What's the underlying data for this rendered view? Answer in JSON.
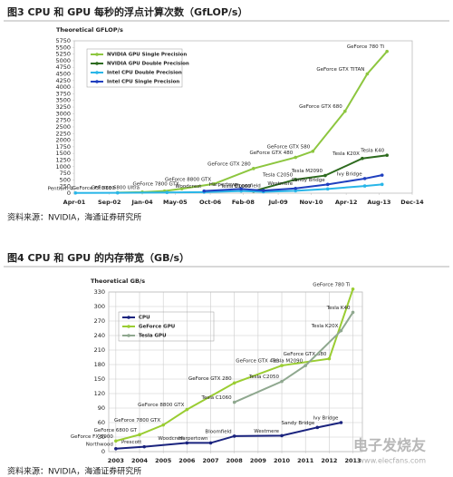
{
  "chart_data": [
    {
      "type": "line",
      "title": "图3  CPU 和 GPU 每秒的浮点计算次数（GfLOP/s）",
      "y_label": "Theoretical GFLOP/s",
      "source": "资料来源：NVIDIA，海通证券研究所",
      "xlim": [
        2001.25,
        2014.92
      ],
      "xticks": [
        {
          "value": 2001.25,
          "label": "Apr-01"
        },
        {
          "value": 2002.67,
          "label": "Sep-02"
        },
        {
          "value": 2004.0,
          "label": "Jan-04"
        },
        {
          "value": 2005.33,
          "label": "May-05"
        },
        {
          "value": 2006.75,
          "label": "Oct-06"
        },
        {
          "value": 2008.08,
          "label": "Feb-08"
        },
        {
          "value": 2009.5,
          "label": "Jul-09"
        },
        {
          "value": 2010.83,
          "label": "Nov-10"
        },
        {
          "value": 2012.25,
          "label": "Apr-12"
        },
        {
          "value": 2013.58,
          "label": "Aug-13"
        },
        {
          "value": 2014.92,
          "label": "Dec-14"
        }
      ],
      "ylim": [
        0,
        5750
      ],
      "yticks": [
        0,
        250,
        500,
        750,
        1000,
        1250,
        1500,
        1750,
        2000,
        2250,
        2500,
        2750,
        3000,
        3250,
        3500,
        3750,
        4000,
        4250,
        4500,
        4750,
        5000,
        5250,
        5500,
        5750
      ],
      "grid": false,
      "legend": "upper left",
      "series": [
        {
          "name": "NVIDIA GPU Single Precision",
          "color": "#8dc63f",
          "x": [
            2003.0,
            2004.0,
            2004.9,
            2005.6,
            2006.9,
            2008.5,
            2010.2,
            2010.9,
            2012.2,
            2013.1,
            2013.9
          ],
          "values": [
            20,
            40,
            80,
            165,
            350,
            930,
            1350,
            1580,
            3090,
            4500,
            5350
          ],
          "point_labels": [
            "GeForce FX 5800",
            "GeForce 6800 Ultra",
            null,
            "GeForce 7800 GTX",
            "GeForce 8800 GTX",
            "GeForce GTX 280",
            "GeForce GTX 480",
            "GeForce GTX 580",
            "GeForce GTX 680",
            "GeForce GTX TITAN",
            "GeForce 780 Ti"
          ]
        },
        {
          "name": "NVIDIA GPU Double Precision",
          "color": "#2e6b1f",
          "x": [
            2008.5,
            2010.2,
            2011.4,
            2012.9,
            2013.9
          ],
          "values": [
            78,
            515,
            665,
            1310,
            1430
          ],
          "point_labels": [
            "Tesla C1060",
            "Tesla C2050",
            "Tesla M2090",
            "Tesla K20X",
            "Tesla K40"
          ]
        },
        {
          "name": "Intel CPU Double Precision",
          "color": "#29b6e8",
          "x": [
            2001.3,
            2003.0,
            2005.0,
            2006.5,
            2008.0,
            2008.9,
            2010.2,
            2011.5,
            2013.0,
            2013.7
          ],
          "values": [
            8,
            12,
            25,
            40,
            80,
            50,
            90,
            160,
            270,
            330
          ],
          "point_labels": [
            "Pentium 4",
            null,
            null,
            null,
            null,
            null,
            null,
            null,
            null,
            null
          ]
        },
        {
          "name": "Intel CPU Single Precision",
          "color": "#1f3fbf",
          "x": [
            2006.5,
            2008.0,
            2008.9,
            2010.2,
            2011.5,
            2013.0,
            2013.7
          ],
          "values": [
            80,
            160,
            100,
            180,
            330,
            550,
            680
          ],
          "point_labels": [
            "Woodcrest",
            "Harpertown",
            "Bloomfield",
            "Westmere",
            "Sandy Bridge",
            "Ivy Bridge",
            null
          ]
        }
      ]
    },
    {
      "type": "line",
      "title": "图4  CPU 和 GPU 的内存带宽（GB/s）",
      "y_label": "Theoretical GB/s",
      "source": "资料来源：NVIDIA，海通证券研究所",
      "xlim": [
        2002.7,
        2013.4
      ],
      "xticks": [
        2003,
        2004,
        2005,
        2006,
        2007,
        2008,
        2009,
        2010,
        2011,
        2012,
        2013
      ],
      "ylim": [
        0,
        330
      ],
      "yticks": [
        0,
        30,
        60,
        90,
        120,
        150,
        180,
        210,
        240,
        270,
        300,
        330
      ],
      "grid": true,
      "legend": "left",
      "series": [
        {
          "name": "CPU",
          "color": "#1a237e",
          "x": [
            2003,
            2004.2,
            2006,
            2007,
            2008,
            2010,
            2011.5,
            2012.5
          ],
          "values": [
            6,
            10,
            18,
            18,
            32,
            33,
            50,
            60
          ],
          "point_labels": [
            "Northwood",
            "Prescott",
            "Woodcrest",
            "Harpertown",
            "Bloomfield",
            "Westmere",
            "Sandy Bridge",
            "Ivy Bridge"
          ]
        },
        {
          "name": "GeForce GPU",
          "color": "#9acd32",
          "x": [
            2003,
            2004,
            2005,
            2006,
            2008,
            2010,
            2012,
            2013
          ],
          "values": [
            22,
            35,
            55,
            87,
            142,
            178,
            192,
            336
          ],
          "point_labels": [
            "GeForce FX 5900",
            "GeForce 6800 GT",
            "GeForce 7800 GTX",
            "GeForce 8800 GTX",
            "GeForce GTX 280",
            "GeForce GTX 480",
            "GeForce GTX 680",
            "GeForce 780 Ti"
          ]
        },
        {
          "name": "Tesla GPU",
          "color": "#8fa88f",
          "x": [
            2008,
            2010,
            2011,
            2012.5,
            2013
          ],
          "values": [
            102,
            145,
            178,
            250,
            288
          ],
          "point_labels": [
            "Tesla C1060",
            "Tesla C2050",
            "Tesla M2090",
            "Tesla K20X",
            "Tesla K40"
          ]
        }
      ]
    }
  ],
  "watermark": {
    "text": "电子发烧友",
    "url": "www.elecfans.com"
  }
}
